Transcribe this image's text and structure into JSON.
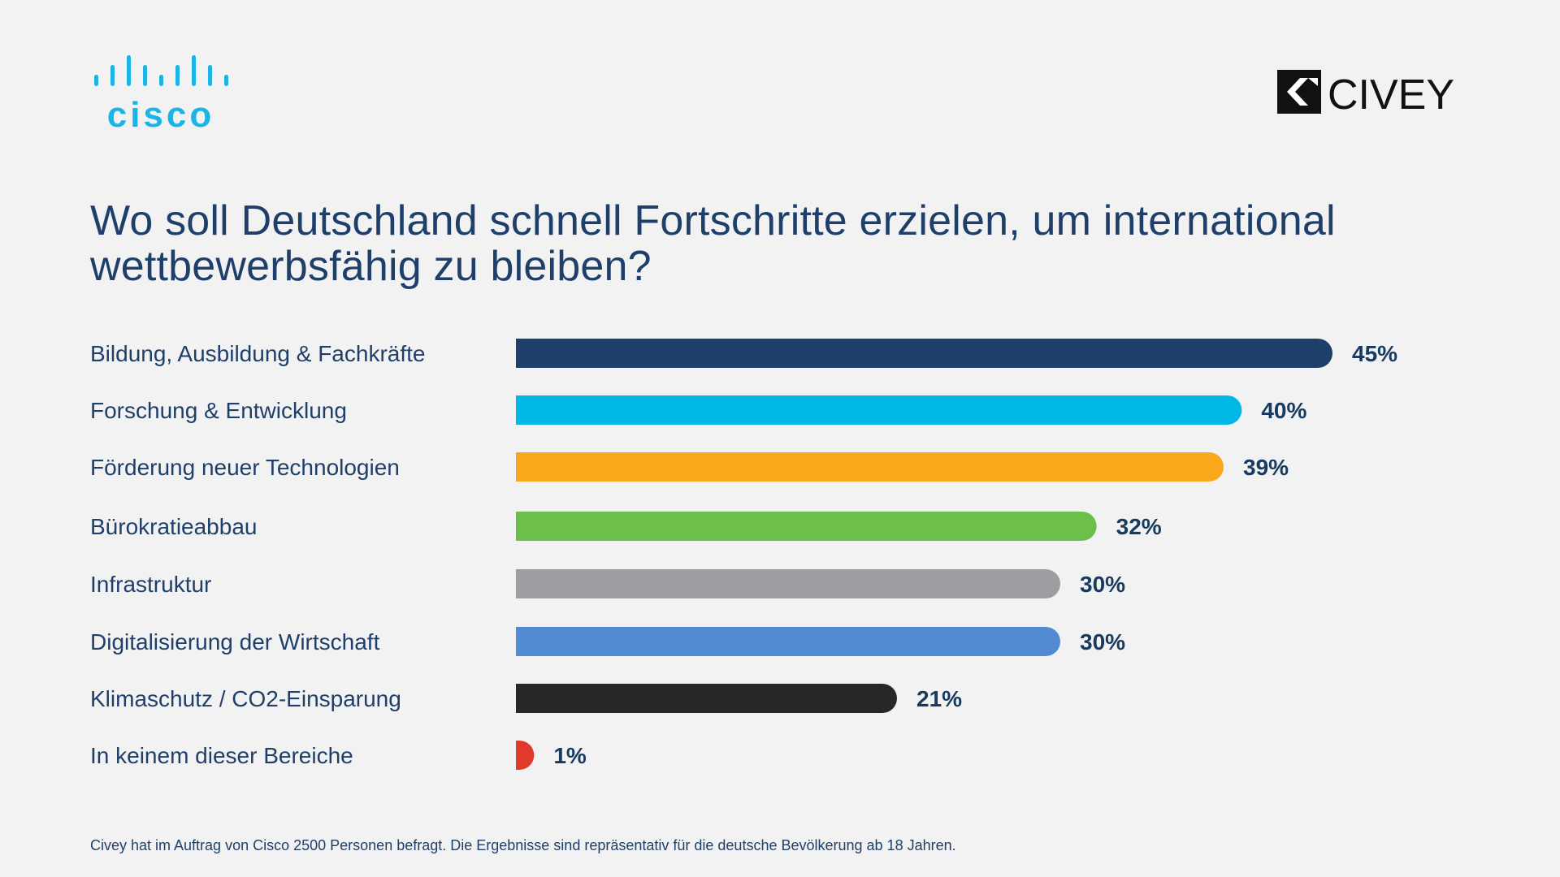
{
  "header": {
    "cisco_logo_text": "cisco",
    "civey_logo_text": "CIVEY"
  },
  "title": "Wo soll Deutschland schnell Fortschritte erzielen, um international wettbewerbsfähig zu bleiben?",
  "footnote": "Civey hat im Auftrag von Cisco 2500 Personen befragt. Die Ergebnisse sind repräsentativ für die deutsche Bevölkerung ab 18 Jahren.",
  "colors": {
    "background": "#f2f2f2",
    "text": "#1f3f6b",
    "value_label": "#173a5e",
    "cisco_blue": "#1ab4e6"
  },
  "chart_data": {
    "type": "bar",
    "orientation": "horizontal",
    "unit": "%",
    "categories": [
      "Bildung, Ausbildung & Fachkräfte",
      "Forschung & Entwicklung",
      "Förderung neuer Technologien",
      "Bürokratieabbau",
      "Infrastruktur",
      "Digitalisierung der Wirtschaft",
      "Klimaschutz / CO2-Einsparung",
      "In keinem dieser Bereiche"
    ],
    "values": [
      45,
      40,
      39,
      32,
      30,
      30,
      21,
      1
    ],
    "value_labels": [
      "45%",
      "40%",
      "39%",
      "32%",
      "30%",
      "30%",
      "21%",
      "1%"
    ],
    "bar_colors": [
      "#1f3f6b",
      "#00b8e6",
      "#f9a81a",
      "#6cbf4b",
      "#9d9ea2",
      "#528bd2",
      "#272727",
      "#e03a2c"
    ],
    "xlim": [
      0,
      45
    ],
    "grid": false,
    "legend": "none"
  }
}
